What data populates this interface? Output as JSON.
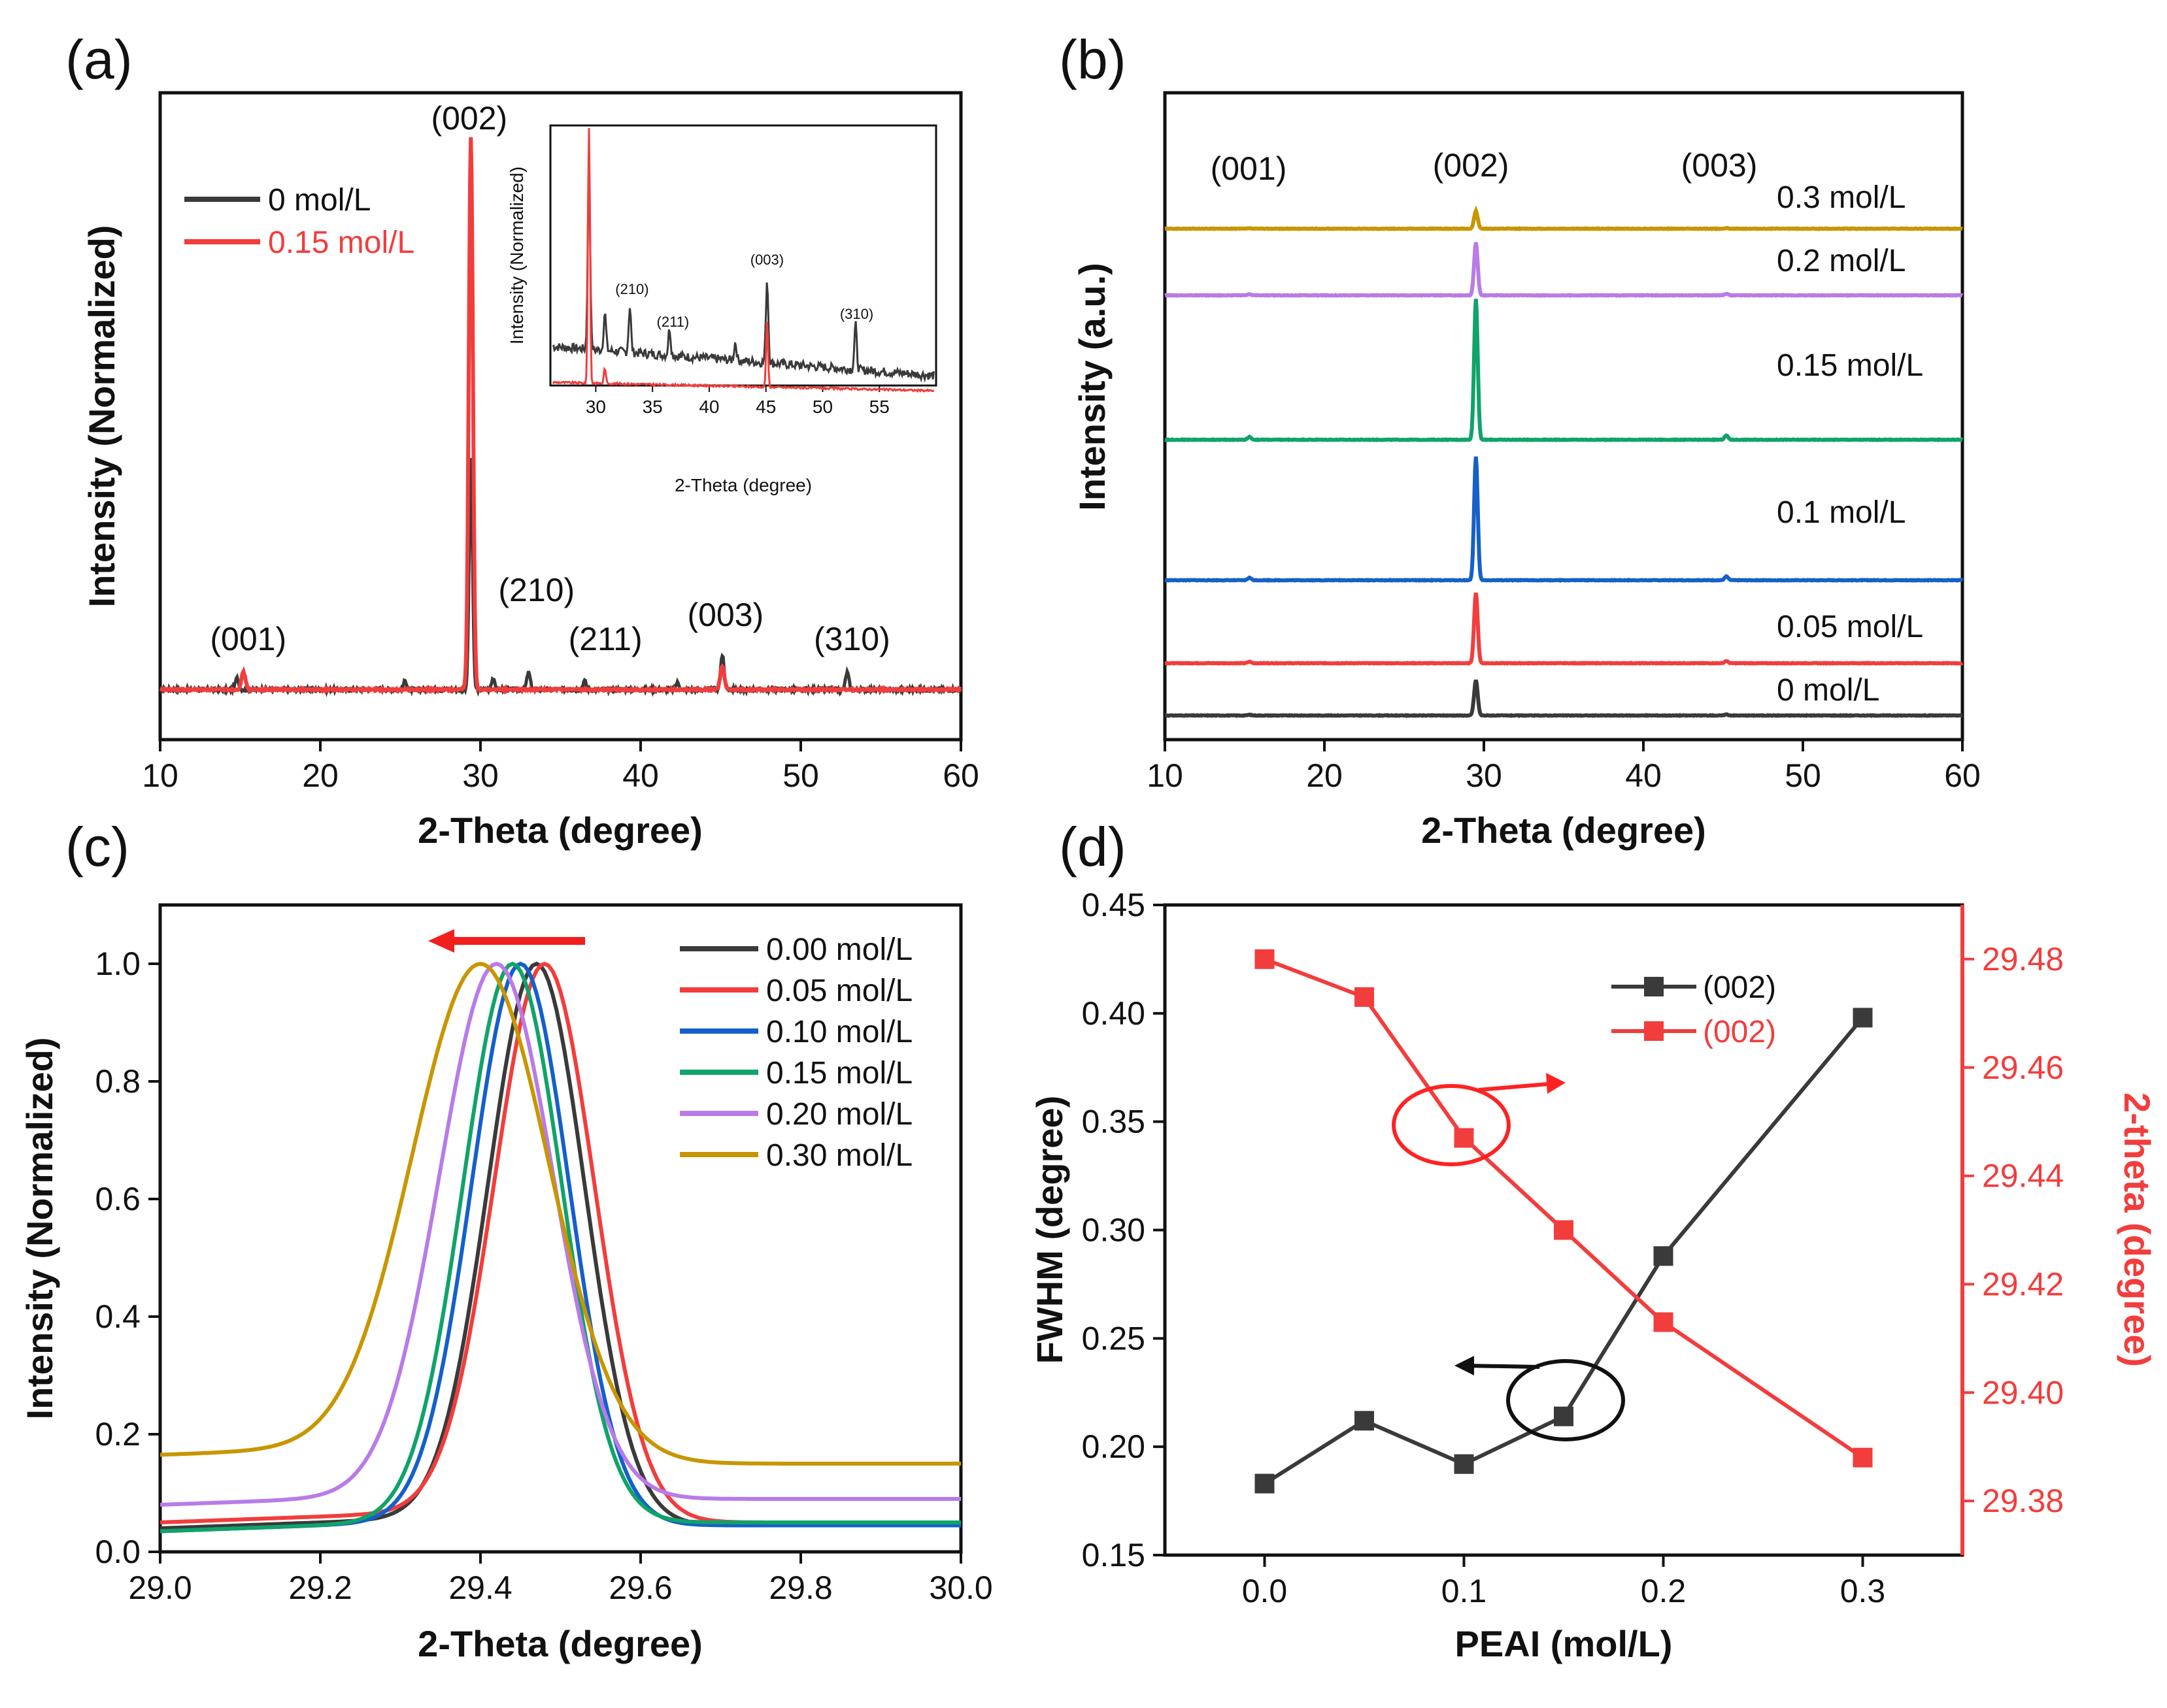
{
  "colors": {
    "black": "#3a3a3a",
    "red": "#f23d3d",
    "blue": "#1560c9",
    "green": "#10a36a",
    "purple": "#b87be8",
    "gold": "#c89600"
  },
  "chart_data": [
    {
      "panel": "(a)",
      "type": "line",
      "xlabel": "2-Theta (degree)",
      "ylabel": "Intensity (Normalized)",
      "xlim": [
        10,
        60
      ],
      "xticks": [
        "10",
        "20",
        "30",
        "40",
        "50",
        "60"
      ],
      "legend_position": "top-left",
      "series": [
        {
          "name": "0 mol/L",
          "color": "#3a3a3a",
          "baseline": 0.05,
          "peaks": [
            [
              14.8,
              0.02
            ],
            [
              25.3,
              0.015
            ],
            [
              29.4,
              0.4
            ],
            [
              30.8,
              0.02
            ],
            [
              33.0,
              0.03
            ],
            [
              36.5,
              0.015
            ],
            [
              42.3,
              0.012
            ],
            [
              45.1,
              0.06
            ],
            [
              52.9,
              0.03
            ]
          ]
        },
        {
          "name": "0.15 mol/L",
          "color": "#f23d3d",
          "baseline": 0.05,
          "peaks": [
            [
              15.2,
              0.03
            ],
            [
              29.4,
              0.96
            ],
            [
              45.1,
              0.04
            ]
          ]
        }
      ],
      "annotations": [
        {
          "text": "(001)",
          "x": 15.5
        },
        {
          "text": "(002)",
          "x": 29.3
        },
        {
          "text": "(210)",
          "x": 33.5
        },
        {
          "text": "(211)",
          "x": 37.8
        },
        {
          "text": "(003)",
          "x": 45.3
        },
        {
          "text": "(310)",
          "x": 53.2
        }
      ],
      "inset": {
        "xlabel": "2-Theta (degree)",
        "ylabel": "Intensity (Normalized)",
        "xlim": [
          26,
          60
        ],
        "xticks": [
          "30",
          "35",
          "40",
          "45",
          "50",
          "55"
        ],
        "peaks_black": [
          [
            29.4,
            1.2
          ],
          [
            30.8,
            0.25
          ],
          [
            33.0,
            0.3
          ],
          [
            36.5,
            0.18
          ],
          [
            42.3,
            0.12
          ],
          [
            45.1,
            0.55
          ],
          [
            52.9,
            0.3
          ]
        ],
        "peaks_red": [
          [
            29.4,
            1.8
          ],
          [
            30.8,
            0.1
          ],
          [
            45.1,
            0.42
          ]
        ],
        "annotations": [
          {
            "text": "(210)",
            "x": 33.2
          },
          {
            "text": "(211)",
            "x": 36.8
          },
          {
            "text": "(003)",
            "x": 45.1
          },
          {
            "text": "(310)",
            "x": 53.0
          }
        ]
      }
    },
    {
      "panel": "(b)",
      "type": "line",
      "xlabel": "2-Theta (degree)",
      "ylabel": "Intensity (a.u.)",
      "xlim": [
        10,
        60
      ],
      "xticks": [
        "10",
        "20",
        "30",
        "40",
        "50",
        "60"
      ],
      "annotations": [
        "(001)",
        "(002)",
        "(003)"
      ],
      "series": [
        {
          "name": "0 mol/L",
          "color": "#3a3a3a",
          "offset": 0,
          "peak_height": 0.6
        },
        {
          "name": "0.05 mol/L",
          "color": "#f23d3d",
          "offset": 1,
          "peak_height": 1.2
        },
        {
          "name": "0.1 mol/L",
          "color": "#1560c9",
          "offset": 2,
          "peak_height": 2.1
        },
        {
          "name": "0.15 mol/L",
          "color": "#10a36a",
          "offset": 3,
          "peak_height": 2.4
        },
        {
          "name": "0.2 mol/L",
          "color": "#b87be8",
          "offset": 4,
          "peak_height": 0.9
        },
        {
          "name": "0.3 mol/L",
          "color": "#c89600",
          "offset": 5,
          "peak_height": 0.3
        }
      ]
    },
    {
      "panel": "(c)",
      "type": "line",
      "xlabel": "2-Theta (degree)",
      "ylabel": "Intensity (Normalized)",
      "xlim": [
        29.0,
        30.0
      ],
      "ylim": [
        0.0,
        1.1
      ],
      "xticks": [
        "29.0",
        "29.2",
        "29.4",
        "29.6",
        "29.8",
        "30.0"
      ],
      "yticks": [
        "0.0",
        "0.2",
        "0.4",
        "0.6",
        "0.8",
        "1.0"
      ],
      "legend_position": "top-right",
      "series": [
        {
          "name": "0.00 mol/L",
          "color": "#3a3a3a",
          "center": 29.47,
          "sigma": 0.085,
          "left_base": 0.04,
          "right_base": 0.045
        },
        {
          "name": "0.05 mol/L",
          "color": "#f23d3d",
          "center": 29.48,
          "sigma": 0.088,
          "left_base": 0.05,
          "right_base": 0.05
        },
        {
          "name": "0.10 mol/L",
          "color": "#1560c9",
          "center": 29.45,
          "sigma": 0.086,
          "left_base": 0.035,
          "right_base": 0.045
        },
        {
          "name": "0.15 mol/L",
          "color": "#10a36a",
          "center": 29.44,
          "sigma": 0.087,
          "left_base": 0.035,
          "right_base": 0.05
        },
        {
          "name": "0.20 mol/L",
          "color": "#b87be8",
          "center": 29.42,
          "sigma": 0.1,
          "left_base": 0.08,
          "right_base": 0.09
        },
        {
          "name": "0.30 mol/L",
          "color": "#c89600",
          "center": 29.4,
          "sigma": 0.12,
          "left_base": 0.165,
          "right_base": 0.15
        }
      ]
    },
    {
      "panel": "(d)",
      "type": "line",
      "xlabel": "PEAI (mol/L)",
      "ylabel": "FWHM (degree)",
      "y2label": "2-theta (degree)",
      "xlim": [
        -0.05,
        0.35
      ],
      "ylim": [
        0.15,
        0.45
      ],
      "y2lim": [
        29.37,
        29.49
      ],
      "xticks": [
        "0.0",
        "0.1",
        "0.2",
        "0.3"
      ],
      "yticks": [
        "0.15",
        "0.20",
        "0.25",
        "0.30",
        "0.35",
        "0.40",
        "0.45"
      ],
      "y2ticks": [
        "29.38",
        "29.40",
        "29.42",
        "29.44",
        "29.46",
        "29.48"
      ],
      "legend_position": "top-right",
      "series": [
        {
          "name": "(002)",
          "axis": "left",
          "color": "#3a3a3a",
          "x": [
            0.0,
            0.05,
            0.1,
            0.15,
            0.2,
            0.3
          ],
          "y": [
            0.183,
            0.212,
            0.192,
            0.214,
            0.288,
            0.398
          ]
        },
        {
          "name": "(002)",
          "axis": "right",
          "color": "#f23d3d",
          "x": [
            0.0,
            0.05,
            0.1,
            0.15,
            0.2,
            0.3
          ],
          "y": [
            29.48,
            29.473,
            29.447,
            29.43,
            29.413,
            29.388
          ]
        }
      ]
    }
  ]
}
